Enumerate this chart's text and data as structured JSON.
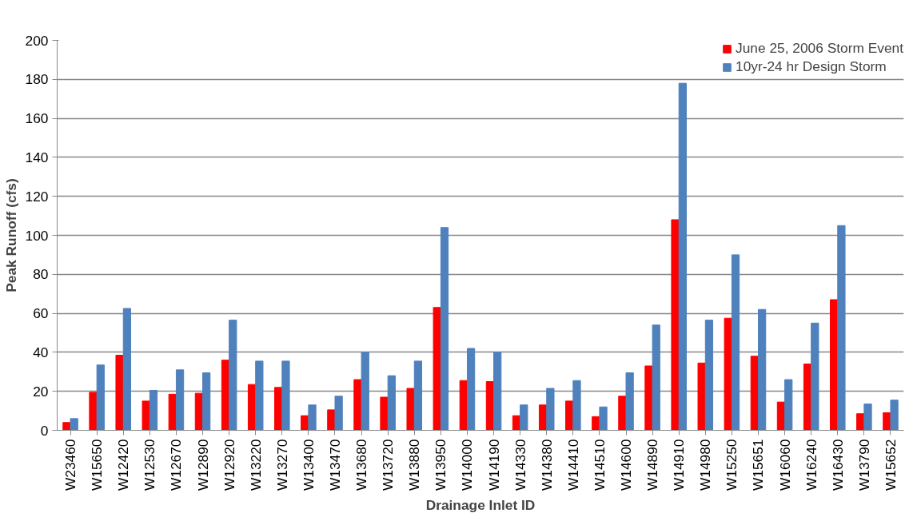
{
  "chart_data": {
    "type": "bar",
    "xlabel": "Drainage Inlet ID",
    "ylabel": "Peak Runoff (cfs)",
    "categories": [
      "W23460",
      "W15650",
      "W12420",
      "W12530",
      "W12670",
      "W12890",
      "W12920",
      "W13220",
      "W13270",
      "W13400",
      "W13470",
      "W13680",
      "W13720",
      "W13880",
      "W13950",
      "W14000",
      "W14190",
      "W14330",
      "W14380",
      "W14410",
      "W14510",
      "W14600",
      "W14890",
      "W14910",
      "W14980",
      "W15250",
      "W15651",
      "W16060",
      "W16240",
      "W16430",
      "W13790",
      "W15652"
    ],
    "series": [
      {
        "name": "June 25, 2006 Storm Event",
        "color": "#ff0000",
        "values": [
          4,
          19.5,
          38.5,
          15,
          18.5,
          19,
          36,
          23.5,
          22,
          7.5,
          10.5,
          26,
          17,
          21.5,
          63,
          25.5,
          25,
          7.5,
          13,
          15,
          7,
          17.5,
          33,
          108,
          34.5,
          57.5,
          38,
          14.5,
          34,
          67,
          8.5,
          9
        ]
      },
      {
        "name": "10yr-24 hr Design Storm",
        "color": "#4f81bd",
        "values": [
          6,
          33.5,
          62.5,
          20.5,
          31,
          29.5,
          56.5,
          35.5,
          35.5,
          13,
          17.5,
          40,
          28,
          35.5,
          104,
          42,
          40,
          13,
          21.5,
          25.5,
          12,
          29.5,
          54,
          178,
          56.5,
          90,
          62,
          26,
          55,
          105,
          13.5,
          15.5
        ]
      }
    ],
    "ylim": [
      0,
      200
    ],
    "yticks": [
      0,
      20,
      40,
      60,
      80,
      100,
      120,
      140,
      160,
      180,
      200
    ],
    "grid": "y",
    "legend": "top right"
  }
}
